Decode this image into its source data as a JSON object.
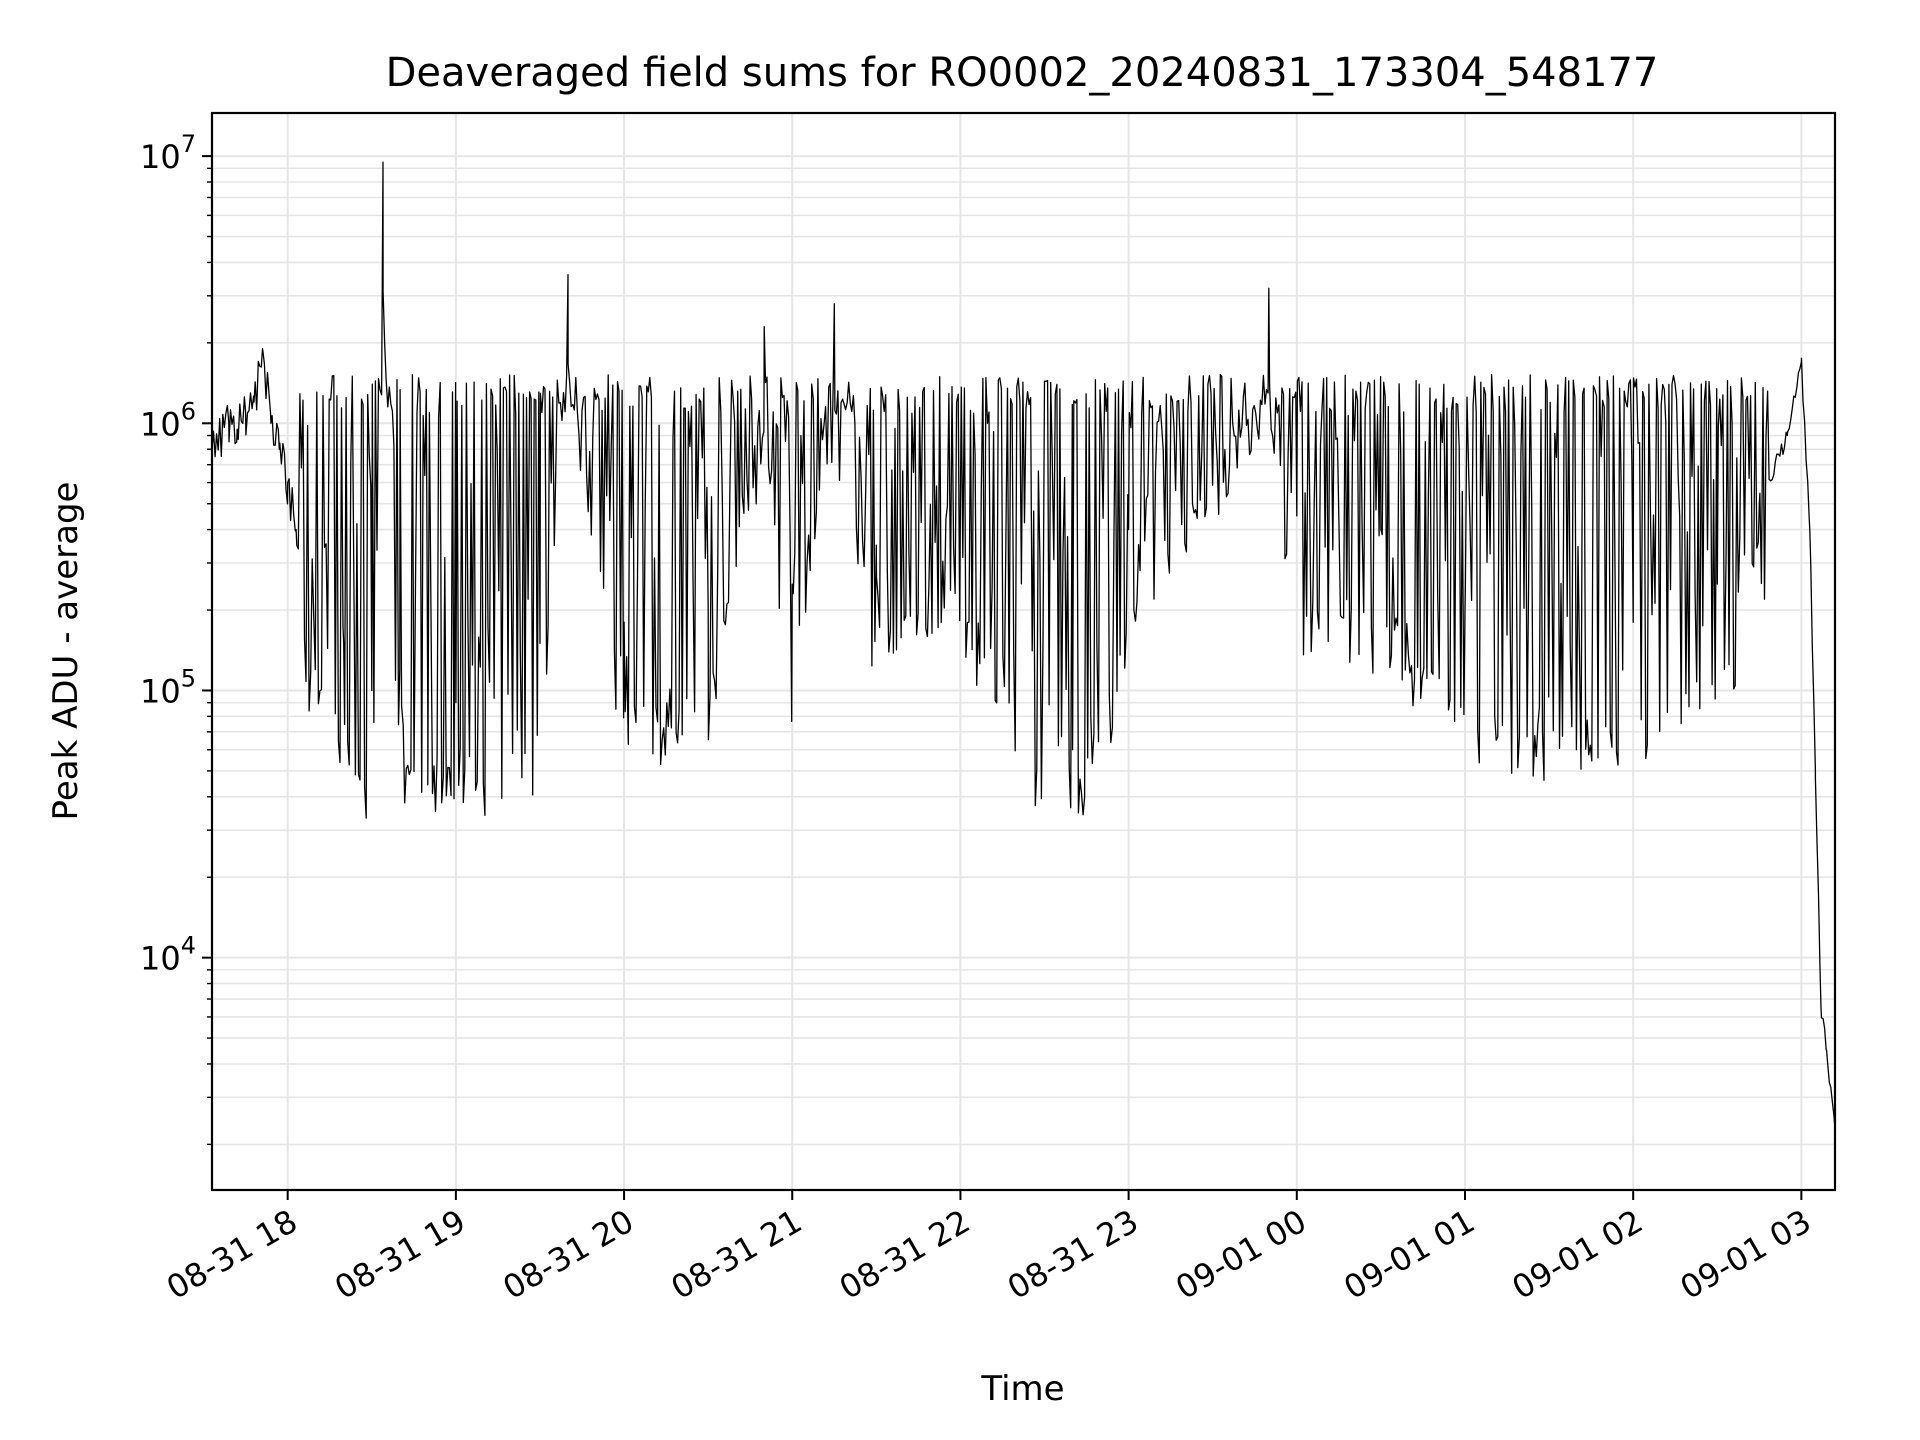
{
  "chart_data": {
    "type": "line",
    "title": "Deaveraged field sums for RO0002_20240831_173304_548177",
    "xlabel": "Time",
    "ylabel": "Peak ADU - average",
    "yscale": "log",
    "xlim": [
      "2024-08-31 17:33",
      "2024-09-01 03:12"
    ],
    "ylim": [
      1350,
      14500000
    ],
    "grid": true,
    "line_color": "#000000",
    "grid_color": "#e6e6e6",
    "x_ticks": [
      {
        "value": "2024-08-31 18:00",
        "label": "08-31 18"
      },
      {
        "value": "2024-08-31 19:00",
        "label": "08-31 19"
      },
      {
        "value": "2024-08-31 20:00",
        "label": "08-31 20"
      },
      {
        "value": "2024-08-31 21:00",
        "label": "08-31 21"
      },
      {
        "value": "2024-08-31 22:00",
        "label": "08-31 22"
      },
      {
        "value": "2024-08-31 23:00",
        "label": "08-31 23"
      },
      {
        "value": "2024-09-01 00:00",
        "label": "09-01 00"
      },
      {
        "value": "2024-09-01 01:00",
        "label": "09-01 01"
      },
      {
        "value": "2024-09-01 02:00",
        "label": "09-01 02"
      },
      {
        "value": "2024-09-01 03:00",
        "label": "09-01 03"
      }
    ],
    "y_ticks": [
      {
        "value": 10000,
        "base": "10",
        "exp": "4"
      },
      {
        "value": 100000,
        "base": "10",
        "exp": "5"
      },
      {
        "value": 1000000,
        "base": "10",
        "exp": "6"
      },
      {
        "value": 10000000,
        "base": "10",
        "exp": "7"
      }
    ],
    "series": [
      {
        "points": [
          [
            "2024-08-31 17:33",
            800000
          ],
          [
            "2024-08-31 17:36",
            900000
          ],
          [
            "2024-08-31 17:39",
            1000000
          ],
          [
            "2024-08-31 17:42",
            950000
          ],
          [
            "2024-08-31 17:45",
            1100000
          ],
          [
            "2024-08-31 17:48",
            1200000
          ],
          [
            "2024-08-31 17:51",
            1900000
          ],
          [
            "2024-08-31 17:54",
            1000000
          ],
          [
            "2024-08-31 17:57",
            800000
          ],
          [
            "2024-08-31 18:00",
            600000
          ],
          [
            "2024-08-31 18:03",
            400000
          ],
          [
            "2024-08-31 18:10",
            250000
          ],
          [
            "2024-08-31 18:20",
            150000
          ],
          [
            "2024-08-31 18:30",
            100000
          ],
          [
            "2024-08-31 18:34",
            9500000
          ],
          [
            "2024-08-31 18:40",
            120000
          ],
          [
            "2024-08-31 18:50",
            80000
          ],
          [
            "2024-08-31 19:00",
            90000
          ],
          [
            "2024-08-31 19:30",
            150000
          ],
          [
            "2024-08-31 19:40",
            3600000
          ],
          [
            "2024-08-31 20:00",
            180000
          ],
          [
            "2024-08-31 20:30",
            200000
          ],
          [
            "2024-08-31 20:50",
            2300000
          ],
          [
            "2024-08-31 21:00",
            250000
          ],
          [
            "2024-08-31 21:15",
            2800000
          ],
          [
            "2024-08-31 21:30",
            350000
          ],
          [
            "2024-08-31 22:00",
            500000
          ],
          [
            "2024-08-31 22:40",
            60000
          ],
          [
            "2024-08-31 23:00",
            400000
          ],
          [
            "2024-08-31 23:50",
            3200000
          ],
          [
            "2024-09-01 00:00",
            450000
          ],
          [
            "2024-09-01 00:30",
            400000
          ],
          [
            "2024-09-01 01:00",
            200000
          ],
          [
            "2024-09-01 01:30",
            150000
          ],
          [
            "2024-09-01 02:00",
            180000
          ],
          [
            "2024-09-01 02:30",
            250000
          ],
          [
            "2024-09-01 02:45",
            500000
          ],
          [
            "2024-09-01 02:55",
            900000
          ],
          [
            "2024-09-01 03:00",
            1700000
          ],
          [
            "2024-09-01 03:03",
            400000
          ],
          [
            "2024-09-01 03:05",
            50000
          ],
          [
            "2024-09-01 03:07",
            6500
          ],
          [
            "2024-09-01 03:09",
            4500
          ],
          [
            "2024-09-01 03:12",
            2300
          ]
        ]
      }
    ]
  }
}
